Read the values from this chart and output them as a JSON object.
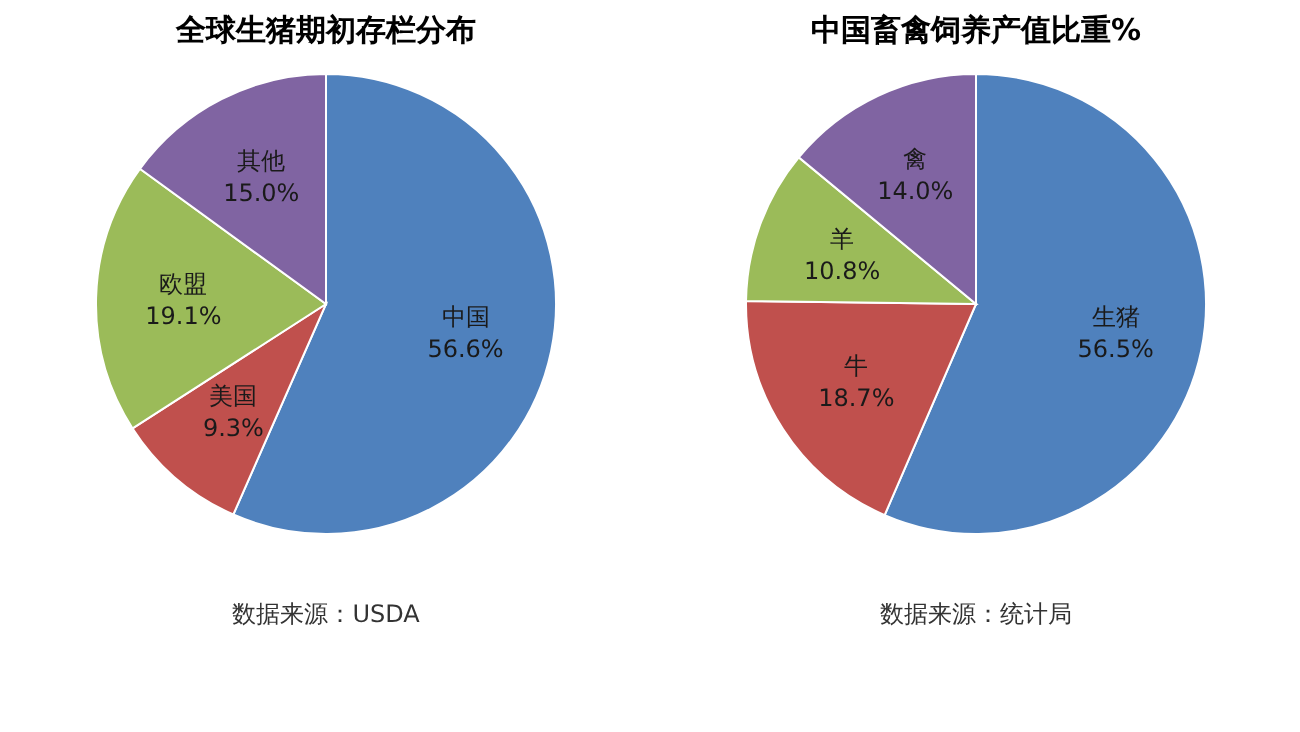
{
  "chart_data": [
    {
      "type": "pie",
      "title": "全球生猪期初存栏分布",
      "categories": [
        "中国",
        "美国",
        "欧盟",
        "其他"
      ],
      "values": [
        56.6,
        9.3,
        19.1,
        15.0
      ],
      "colors": [
        "#4f81bd",
        "#c0504d",
        "#9bbb59",
        "#8064a2"
      ],
      "value_labels": [
        "56.6%",
        "9.3%",
        "19.1%",
        "15.0%"
      ],
      "annotations": [
        "数据来源：USDA"
      ]
    },
    {
      "type": "pie",
      "title": "中国畜禽饲养产值比重%",
      "categories": [
        "生猪",
        "牛",
        "羊",
        "禽"
      ],
      "values": [
        56.5,
        18.7,
        10.8,
        14.0
      ],
      "colors": [
        "#4f81bd",
        "#c0504d",
        "#9bbb59",
        "#8064a2"
      ],
      "value_labels": [
        "56.5%",
        "18.7%",
        "10.8%",
        "14.0%"
      ],
      "annotations": [
        "数据来源：统计局"
      ]
    }
  ]
}
